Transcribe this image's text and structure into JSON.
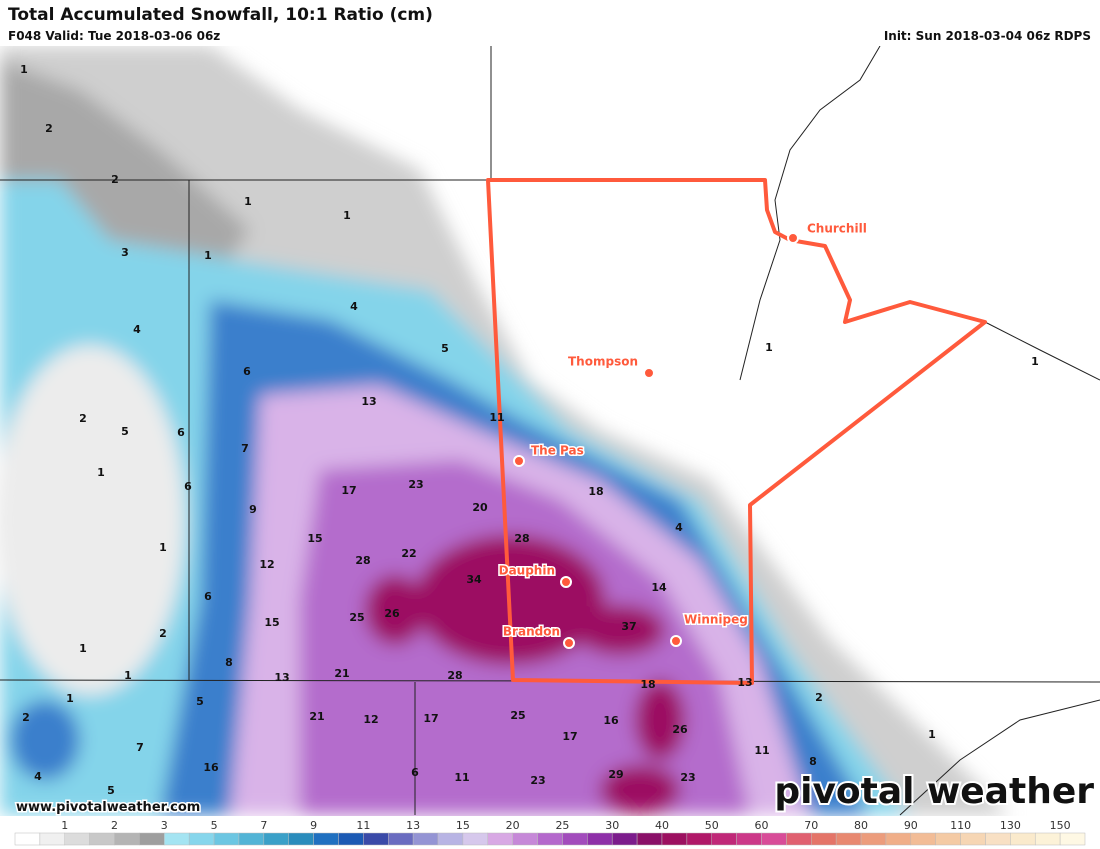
{
  "header": {
    "title": "Total Accumulated Snowfall, 10:1 Ratio (cm)",
    "valid": "F048 Valid: Tue 2018-03-06 06z",
    "init": "Init: Sun 2018-03-04 06z RDPS"
  },
  "map": {
    "cities": [
      "Churchill",
      "Thompson",
      "The Pas",
      "Dauphin",
      "Brandon",
      "Winnipeg"
    ],
    "value_labels": [
      1,
      2,
      2,
      1,
      1,
      1,
      3,
      4,
      4,
      5,
      6,
      13,
      11,
      2,
      5,
      6,
      7,
      1,
      6,
      17,
      23,
      20,
      18,
      9,
      15,
      28,
      4,
      1,
      12,
      28,
      22,
      34,
      14,
      6,
      25,
      26,
      15,
      37,
      2,
      1,
      8,
      1,
      13,
      21,
      28,
      1,
      1,
      18,
      13,
      1,
      5,
      2,
      2,
      21,
      12,
      17,
      25,
      16,
      26,
      17,
      1,
      7,
      11,
      8,
      16,
      6,
      11,
      23,
      29,
      23,
      4,
      5
    ]
  },
  "legend": {
    "labels": [
      1,
      2,
      3,
      5,
      7,
      9,
      11,
      13,
      15,
      20,
      25,
      30,
      40,
      50,
      60,
      70,
      80,
      90,
      110,
      130,
      150
    ]
  },
  "footer": {
    "url": "www.pivotalweather.com",
    "logo": "pivotal weather"
  }
}
